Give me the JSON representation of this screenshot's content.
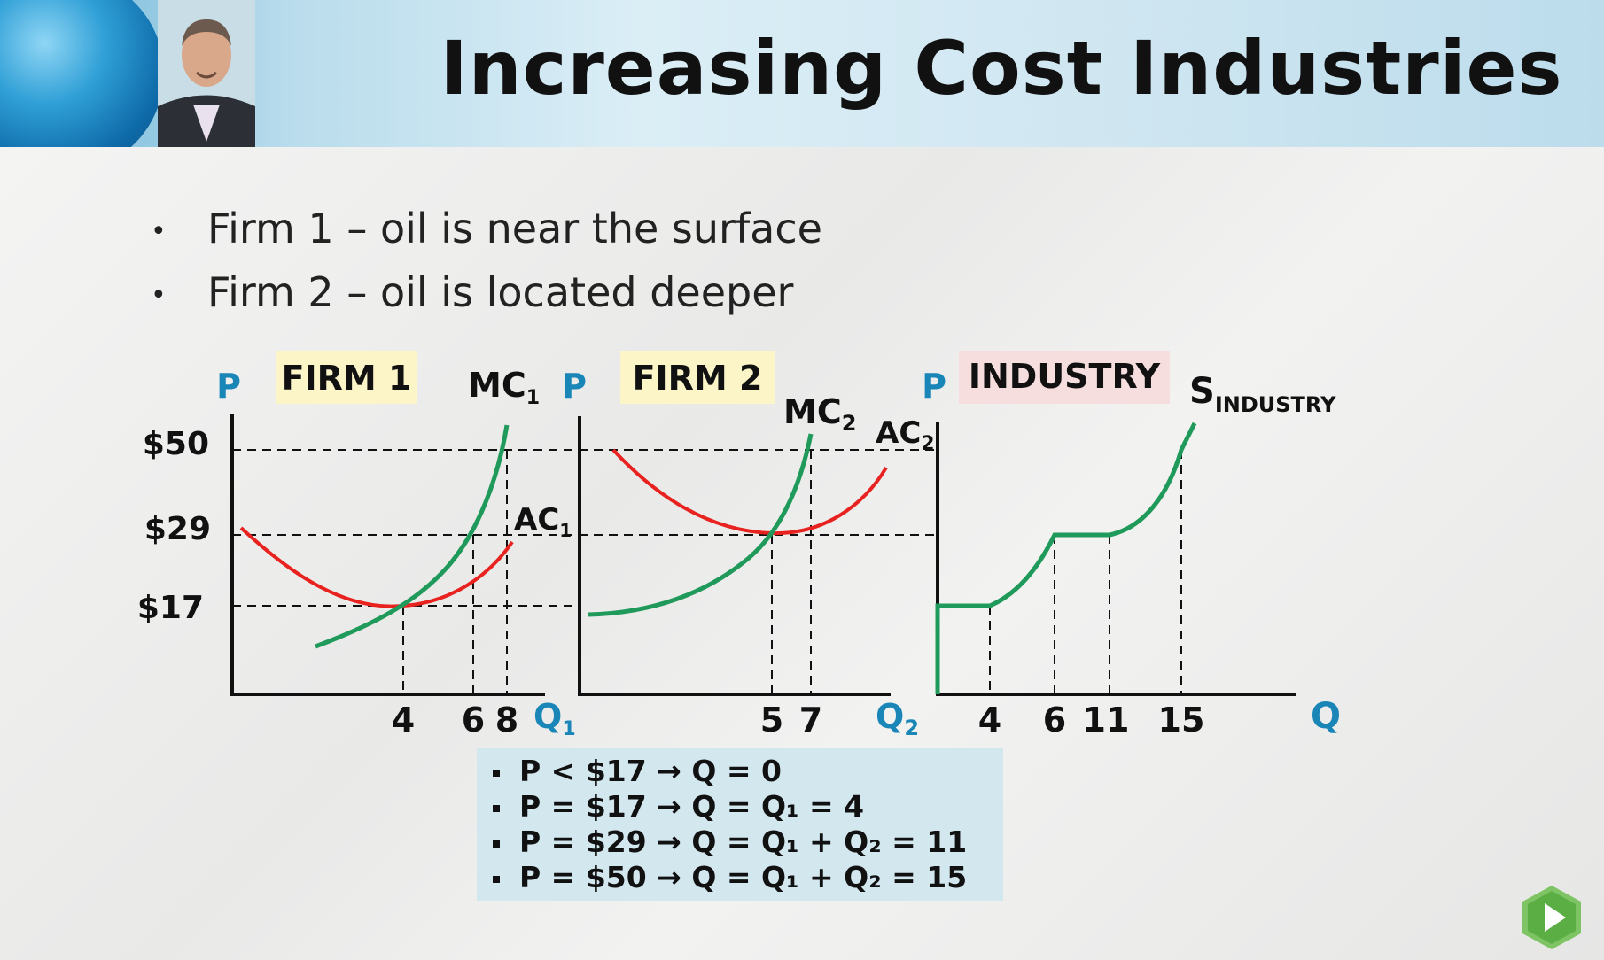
{
  "slide": {
    "title": "Increasing Cost Industries",
    "bullets": [
      "Firm 1 – oil is near the surface",
      "Firm 2 – oil is located deeper"
    ]
  },
  "panels": {
    "firm1": {
      "label": "FIRM 1",
      "y_axis": "P",
      "x_axis": "Q",
      "x_axis_sub": "1",
      "mc_label": "MC",
      "mc_sub": "1",
      "ac_label": "AC",
      "ac_sub": "1",
      "price_ticks": [
        "$50",
        "$29",
        "$17"
      ],
      "q_ticks": [
        "4",
        "6",
        "8"
      ]
    },
    "firm2": {
      "label": "FIRM 2",
      "y_axis": "P",
      "x_axis": "Q",
      "x_axis_sub": "2",
      "mc_label": "MC",
      "mc_sub": "2",
      "ac_label": "AC",
      "ac_sub": "2",
      "q_ticks": [
        "5",
        "7"
      ]
    },
    "industry": {
      "label": "INDUSTRY",
      "y_axis": "P",
      "x_axis": "Q",
      "s_label": "S",
      "s_sub": "INDUSTRY",
      "q_ticks": [
        "4",
        "6",
        "11",
        "15"
      ]
    }
  },
  "notes": [
    "P < $17 → Q = 0",
    "P = $17 → Q = Q₁ =   4",
    "P = $29 → Q = Q₁  + Q₂ = 11",
    "P = $50 → Q = Q₁  + Q₂ = 15"
  ],
  "colors": {
    "mc_curve": "#1f9a5a",
    "ac_curve": "#e8221f",
    "axis_label": "#1a86b8",
    "firm_label_bg": "#fbf5c8",
    "industry_label_bg": "#f6dede",
    "note_bg": "#d3e7ef"
  },
  "icons": {
    "play": "play-icon"
  }
}
